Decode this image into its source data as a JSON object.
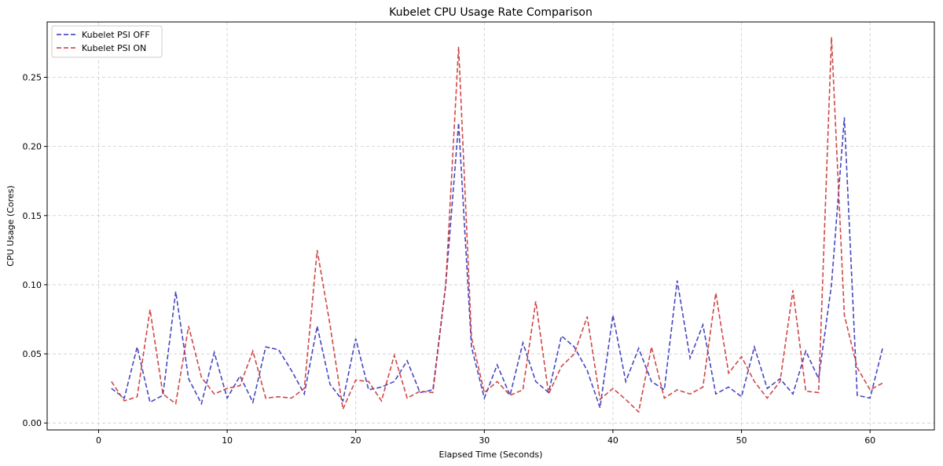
{
  "chart_data": {
    "type": "line",
    "title": "Kubelet CPU Usage Rate Comparison",
    "xlabel": "Elapsed Time (Seconds)",
    "ylabel": "CPU Usage (Cores)",
    "xlim": [
      -4,
      65
    ],
    "ylim": [
      -0.005,
      0.29
    ],
    "xticks": [
      0,
      10,
      20,
      30,
      40,
      50,
      60
    ],
    "yticks": [
      0.0,
      0.05,
      0.1,
      0.15,
      0.2,
      0.25
    ],
    "ytick_labels": [
      "0.00",
      "0.05",
      "0.10",
      "0.15",
      "0.20",
      "0.25"
    ],
    "grid": true,
    "legend_position": "top-left",
    "x": [
      1,
      2,
      3,
      4,
      5,
      6,
      7,
      8,
      9,
      10,
      11,
      12,
      13,
      14,
      15,
      16,
      17,
      18,
      19,
      20,
      21,
      22,
      23,
      24,
      25,
      26,
      27,
      28,
      29,
      30,
      31,
      32,
      33,
      34,
      35,
      36,
      37,
      38,
      39,
      40,
      41,
      42,
      43,
      44,
      45,
      46,
      47,
      48,
      49,
      50,
      51,
      52,
      53,
      54,
      55,
      56,
      57,
      58,
      59,
      60,
      61
    ],
    "series": [
      {
        "name": "Kubelet PSI OFF",
        "color": "#3333bb",
        "values": [
          0.025,
          0.018,
          0.055,
          0.015,
          0.02,
          0.095,
          0.032,
          0.014,
          0.051,
          0.018,
          0.034,
          0.015,
          0.055,
          0.053,
          0.038,
          0.021,
          0.07,
          0.028,
          0.016,
          0.061,
          0.024,
          0.026,
          0.03,
          0.045,
          0.022,
          0.024,
          0.1,
          0.217,
          0.055,
          0.018,
          0.042,
          0.02,
          0.058,
          0.03,
          0.022,
          0.063,
          0.055,
          0.038,
          0.011,
          0.078,
          0.03,
          0.054,
          0.03,
          0.024,
          0.103,
          0.047,
          0.071,
          0.021,
          0.026,
          0.019,
          0.055,
          0.025,
          0.032,
          0.021,
          0.052,
          0.032,
          0.1,
          0.221,
          0.02,
          0.018,
          0.055
        ]
      },
      {
        "name": "Kubelet PSI ON",
        "color": "#cc3333",
        "values": [
          0.03,
          0.016,
          0.019,
          0.082,
          0.021,
          0.014,
          0.07,
          0.033,
          0.021,
          0.025,
          0.027,
          0.052,
          0.018,
          0.019,
          0.018,
          0.025,
          0.125,
          0.071,
          0.01,
          0.031,
          0.03,
          0.016,
          0.049,
          0.018,
          0.023,
          0.022,
          0.1,
          0.272,
          0.062,
          0.022,
          0.03,
          0.02,
          0.024,
          0.088,
          0.021,
          0.041,
          0.05,
          0.077,
          0.017,
          0.025,
          0.017,
          0.008,
          0.055,
          0.018,
          0.024,
          0.021,
          0.026,
          0.094,
          0.036,
          0.048,
          0.03,
          0.018,
          0.03,
          0.096,
          0.023,
          0.022,
          0.279,
          0.078,
          0.04,
          0.024,
          0.029
        ]
      }
    ]
  }
}
